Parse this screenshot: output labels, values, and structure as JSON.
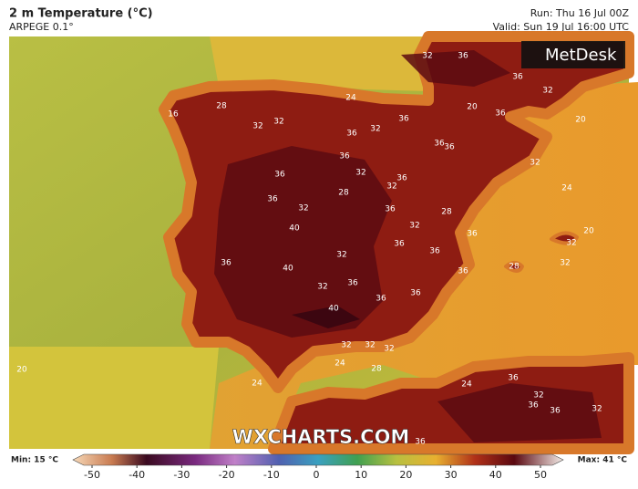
{
  "header": {
    "title": "2 m Temperature (°C)",
    "model": "ARPEGE 0.1°",
    "run": "Run: Thu 16 Jul 00Z",
    "valid": "Valid: Sun 19 Jul 16:00 UTC"
  },
  "logo": "MetDesk",
  "watermark": "WXCHARTS.COM",
  "map": {
    "contour_labels": [
      "32",
      "36",
      "36",
      "32",
      "24",
      "28",
      "32",
      "32",
      "16",
      "32",
      "36",
      "20",
      "36",
      "20",
      "36",
      "36",
      "36",
      "32",
      "36",
      "32",
      "36",
      "36",
      "32",
      "24",
      "28",
      "36",
      "32",
      "36",
      "28",
      "40",
      "32",
      "36",
      "20",
      "32",
      "36",
      "36",
      "32",
      "36",
      "40",
      "28",
      "32",
      "36",
      "36",
      "32",
      "36",
      "36",
      "40",
      "32",
      "32",
      "32",
      "24",
      "20",
      "24",
      "24",
      "36",
      "32",
      "36",
      "36",
      "32",
      "36",
      "28"
    ]
  },
  "colorbar": {
    "min_label": "Min: 15 °C",
    "max_label": "Max: 41 °C",
    "ticks": [
      -50,
      -40,
      -30,
      -20,
      -10,
      0,
      10,
      20,
      30,
      40,
      50
    ]
  }
}
